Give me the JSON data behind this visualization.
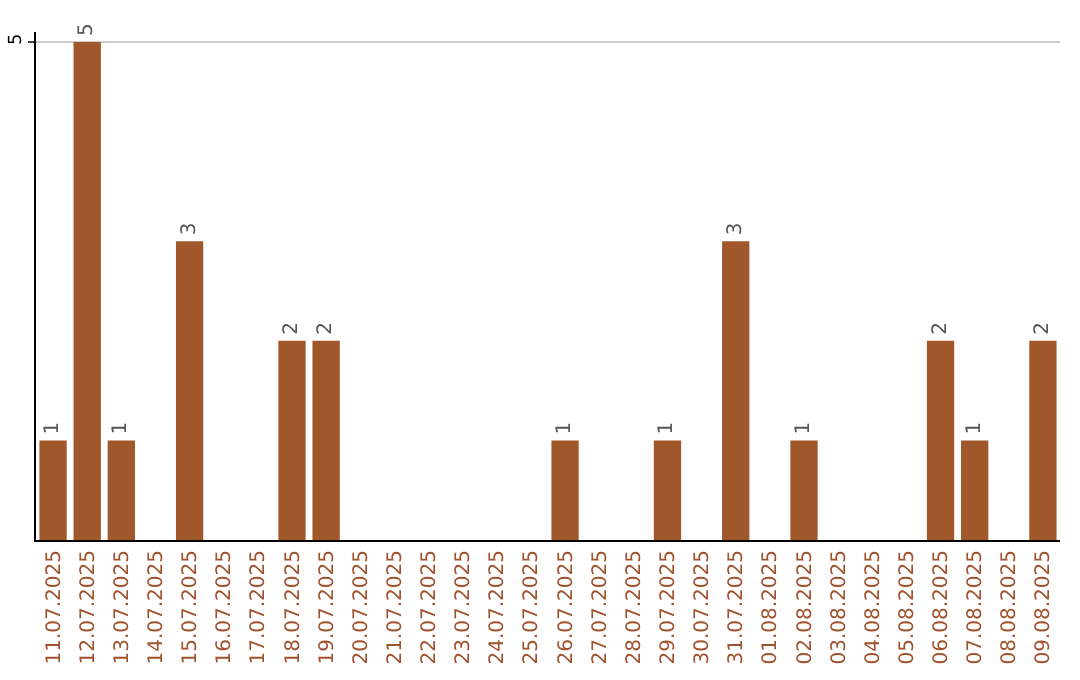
{
  "chart_data": {
    "type": "bar",
    "categories": [
      "11.07.2025",
      "12.07.2025",
      "13.07.2025",
      "14.07.2025",
      "15.07.2025",
      "16.07.2025",
      "17.07.2025",
      "18.07.2025",
      "19.07.2025",
      "20.07.2025",
      "21.07.2025",
      "22.07.2025",
      "23.07.2025",
      "24.07.2025",
      "25.07.2025",
      "26.07.2025",
      "27.07.2025",
      "28.07.2025",
      "29.07.2025",
      "30.07.2025",
      "31.07.2025",
      "01.08.2025",
      "02.08.2025",
      "03.08.2025",
      "04.08.2025",
      "05.08.2025",
      "06.08.2025",
      "07.08.2025",
      "08.08.2025",
      "09.08.2025"
    ],
    "values": [
      1,
      5,
      1,
      0,
      3,
      0,
      0,
      2,
      2,
      0,
      0,
      0,
      0,
      0,
      0,
      1,
      0,
      0,
      1,
      0,
      3,
      0,
      1,
      0,
      0,
      0,
      2,
      1,
      0,
      2
    ],
    "value_labels": [
      "1",
      "5",
      "1",
      null,
      "3",
      null,
      null,
      "2",
      "2",
      null,
      null,
      null,
      null,
      null,
      null,
      "1",
      null,
      null,
      "1",
      null,
      "3",
      null,
      "1",
      null,
      null,
      null,
      "2",
      "1",
      null,
      "2"
    ],
    "color": "#a0572a",
    "ylim": [
      0,
      5.1
    ],
    "yticks": [
      5
    ],
    "grid": "y",
    "legend": false
  }
}
